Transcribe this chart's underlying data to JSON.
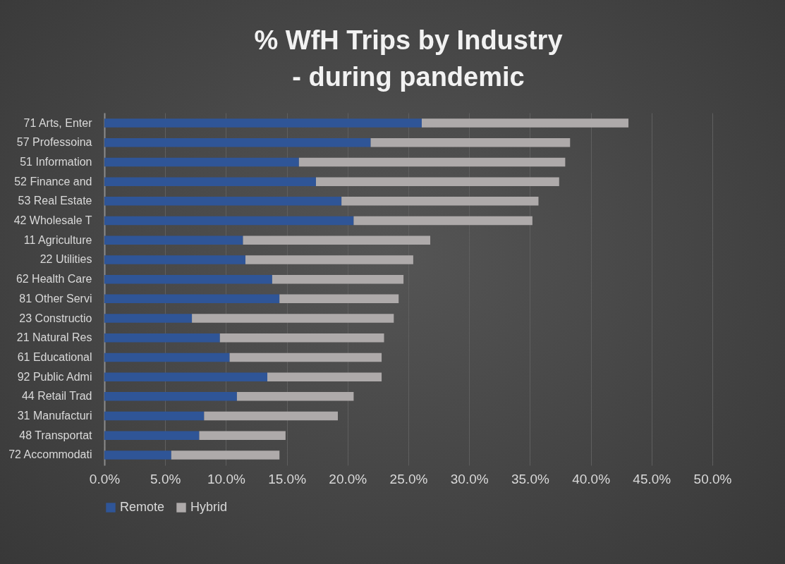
{
  "chart_data": {
    "type": "bar",
    "orientation": "horizontal",
    "stacked": true,
    "title": "% WfH Trips by Industry\n- during pandemic",
    "categories": [
      "71 Arts, Enter",
      "57 Professoina",
      "51 Information",
      "52 Finance and",
      "53 Real Estate",
      "42 Wholesale T",
      "11 Agriculture",
      "22 Utilities",
      "62 Health Care",
      "81 Other Servi",
      "23 Constructio",
      "21 Natural Res",
      "61 Educational",
      "92 Public Admi",
      "44 Retail Trad",
      "31 Manufacturi",
      "48 Transportat",
      "72 Accommodati"
    ],
    "series": [
      {
        "name": "Remote",
        "color": "#2f5597",
        "values": [
          26.1,
          21.9,
          16.0,
          17.4,
          19.5,
          20.5,
          11.4,
          11.6,
          13.8,
          14.4,
          7.2,
          9.5,
          10.3,
          13.4,
          10.9,
          8.2,
          7.8,
          5.5
        ]
      },
      {
        "name": "Hybrid",
        "color": "#aeaaaa",
        "values": [
          17.0,
          16.4,
          21.9,
          20.0,
          16.2,
          14.7,
          15.4,
          13.8,
          10.8,
          9.8,
          16.6,
          13.5,
          12.5,
          9.4,
          9.6,
          11.0,
          7.1,
          8.9
        ]
      }
    ],
    "xlim": [
      0,
      50
    ],
    "xticks": [
      {
        "value": 0,
        "label": "0.0%"
      },
      {
        "value": 5,
        "label": "5.0%"
      },
      {
        "value": 10,
        "label": "10.0%"
      },
      {
        "value": 15,
        "label": "15.0%"
      },
      {
        "value": 20,
        "label": "20.0%"
      },
      {
        "value": 25,
        "label": "25.0%"
      },
      {
        "value": 30,
        "label": "30.0%"
      },
      {
        "value": 35,
        "label": "35.0%"
      },
      {
        "value": 40,
        "label": "40.0%"
      },
      {
        "value": 45,
        "label": "45.0%"
      },
      {
        "value": 50,
        "label": "50.0%"
      }
    ],
    "grid": "x",
    "legend": "bottom"
  }
}
